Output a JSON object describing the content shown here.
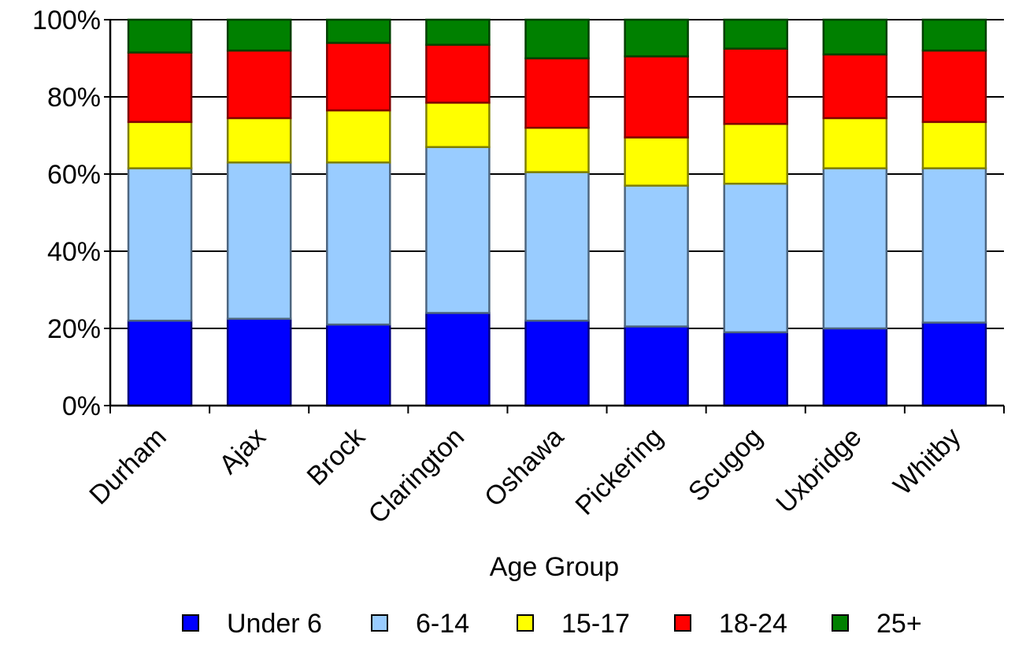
{
  "chart_data": {
    "type": "bar",
    "stacked": true,
    "percent_stacked": true,
    "title": "",
    "xlabel": "Age Group",
    "ylabel": "",
    "ylim": [
      0,
      100
    ],
    "yticks": [
      "0%",
      "20%",
      "40%",
      "60%",
      "80%",
      "100%"
    ],
    "grid": "horizontal",
    "legend_position": "bottom",
    "categories": [
      "Durham",
      "Ajax",
      "Brock",
      "Clarington",
      "Oshawa",
      "Pickering",
      "Scugog",
      "Uxbridge",
      "Whitby"
    ],
    "series": [
      {
        "name": "Under 6",
        "color": "#0000ff",
        "values": [
          22,
          22.5,
          21,
          24,
          22,
          20.5,
          19,
          20,
          21.5
        ]
      },
      {
        "name": "6-14",
        "color": "#99ccff",
        "values": [
          39.5,
          40.5,
          42,
          43,
          38.5,
          36.5,
          38.5,
          41.5,
          40
        ]
      },
      {
        "name": "15-17",
        "color": "#ffff00",
        "values": [
          12,
          11.5,
          13.5,
          11.5,
          11.5,
          12.5,
          15.5,
          13,
          12
        ]
      },
      {
        "name": "18-24",
        "color": "#ff0000",
        "values": [
          18,
          17.5,
          17.5,
          15,
          18,
          21,
          19.5,
          16.5,
          18.5
        ]
      },
      {
        "name": "25+",
        "color": "#008000",
        "values": [
          8.5,
          8,
          6,
          6.5,
          10,
          9.5,
          7.5,
          9,
          8
        ]
      }
    ]
  }
}
